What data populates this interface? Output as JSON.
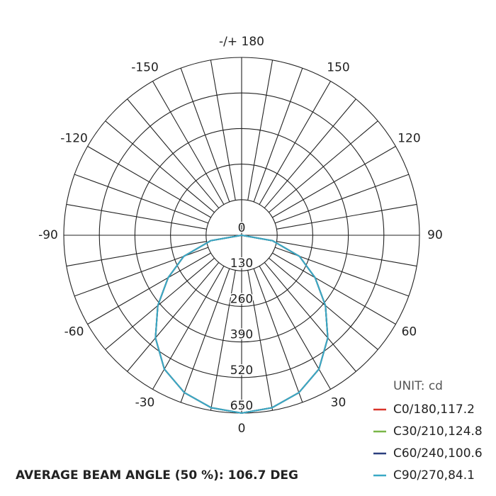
{
  "chart_data": {
    "type": "polar",
    "thetaticks": [
      {
        "value": 180,
        "label": "-/+ 180"
      },
      150,
      120,
      90,
      60,
      30,
      0,
      -30,
      -60,
      -90,
      -120,
      -150
    ],
    "rlim": [
      0,
      650
    ],
    "rticks": [
      0,
      130,
      260,
      390,
      520,
      650
    ],
    "theta": [
      -90,
      -80,
      -70,
      -60,
      -50,
      -40,
      -30,
      -20,
      -10,
      0,
      10,
      20,
      30,
      40,
      50,
      60,
      70,
      80,
      90
    ],
    "series": [
      {
        "name": "C0/180,117.2",
        "color": "#d9342b",
        "values": [
          0,
          115,
          225,
          310,
          400,
          490,
          565,
          612,
          640,
          650,
          640,
          612,
          565,
          490,
          400,
          310,
          225,
          115,
          0
        ]
      },
      {
        "name": "C30/210,124.8",
        "color": "#7ab648",
        "values": [
          0,
          115,
          225,
          310,
          400,
          490,
          565,
          612,
          640,
          650,
          640,
          612,
          565,
          490,
          400,
          310,
          225,
          115,
          0
        ]
      },
      {
        "name": "C60/240,100.6",
        "color": "#2b3f7e",
        "values": [
          0,
          115,
          225,
          310,
          400,
          490,
          565,
          612,
          640,
          650,
          640,
          612,
          565,
          490,
          400,
          310,
          225,
          115,
          0
        ]
      },
      {
        "name": "C90/270,84.1",
        "color": "#3aa9c6",
        "values": [
          0,
          115,
          225,
          310,
          400,
          490,
          565,
          612,
          640,
          650,
          640,
          612,
          565,
          490,
          400,
          310,
          225,
          115,
          0
        ]
      }
    ],
    "unit_label": "UNIT: cd",
    "footnote": "AVERAGE BEAM ANGLE (50 %): 106.7 DEG"
  }
}
